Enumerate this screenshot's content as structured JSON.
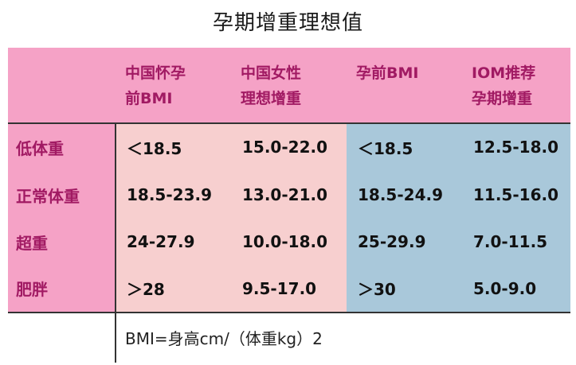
{
  "title": "孕期增重理想值",
  "header": {
    "col1": [
      "中国怀孕",
      "前BMI"
    ],
    "col2": [
      "中国女性",
      "理想增重"
    ],
    "col3": [
      "孕前BMI"
    ],
    "col4": [
      "IOM推荐",
      "孕期增重"
    ]
  },
  "rows": [
    {
      "label": "低体重",
      "cn_bmi": "＜18.5",
      "cn_gain": "15.0-22.0",
      "bmi": "＜18.5",
      "iom_gain": "12.5-18.0"
    },
    {
      "label": "正常体重",
      "cn_bmi": "18.5-23.9",
      "cn_gain": "13.0-21.0",
      "bmi": "18.5-24.9",
      "iom_gain": "11.5-16.0"
    },
    {
      "label": "超重",
      "cn_bmi": "24-27.9",
      "cn_gain": "10.0-18.0",
      "bmi": "25-29.9",
      "iom_gain": "7.0-11.5"
    },
    {
      "label": "肥胖",
      "cn_bmi": "＞28",
      "cn_gain": "9.5-17.0",
      "bmi": "＞30",
      "iom_gain": "5.0-9.0"
    }
  ],
  "footnote": "BMI=身高cm/（体重kg）2",
  "colors": {
    "header_bg": "#f5a2c6",
    "left_body_bg": "#f7cfcf",
    "right_body_bg": "#a9c8da",
    "label_text": "#a11a63"
  }
}
